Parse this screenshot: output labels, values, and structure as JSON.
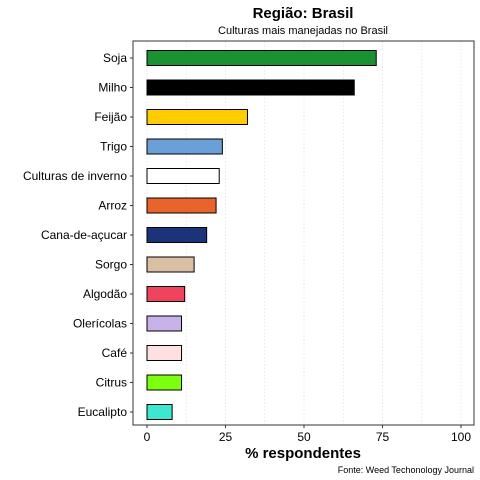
{
  "chart_data": {
    "type": "bar",
    "orientation": "horizontal",
    "title": "Região: Brasil",
    "subtitle": "Culturas mais manejadas no Brasil",
    "xlabel": "% respondentes",
    "caption": "Fonte: Weed Techonology Journal",
    "xlim": [
      0,
      100
    ],
    "xticks": [
      0,
      25,
      50,
      75,
      100
    ],
    "grid": "vertical dotted",
    "legend": "none",
    "categories": [
      "Soja",
      "Milho",
      "Feijão",
      "Trigo",
      "Culturas de inverno",
      "Arroz",
      "Cana-de-açucar",
      "Sorgo",
      "Algodão",
      "Olerícolas",
      "Café",
      "Citrus",
      "Eucalipto"
    ],
    "values": [
      73,
      66,
      32,
      24,
      23,
      22,
      19,
      15,
      12,
      11,
      11,
      11,
      8
    ],
    "colors": [
      "#1a9133",
      "#000000",
      "#ffcc00",
      "#6a9fd8",
      "#ffffff",
      "#e8642d",
      "#1b3479",
      "#d9bfa3",
      "#f0445e",
      "#c7b3ea",
      "#ffe0e0",
      "#7dff10",
      "#3de8cf"
    ]
  }
}
